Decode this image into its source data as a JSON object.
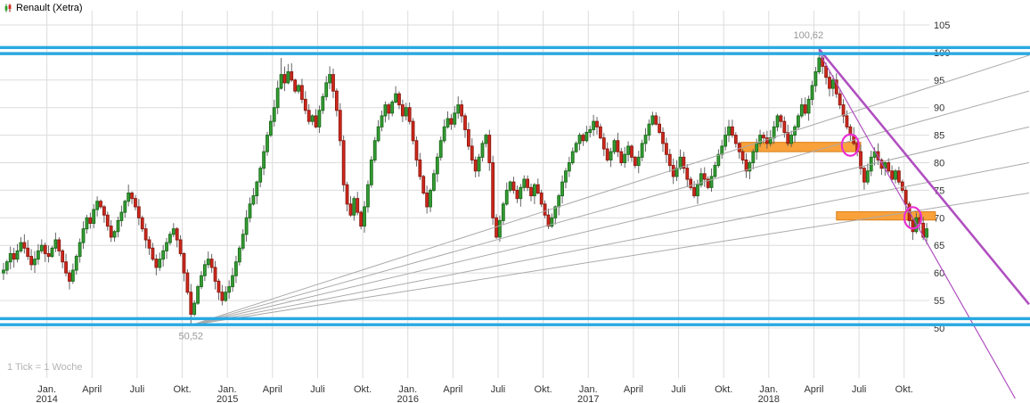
{
  "chart_data": {
    "type": "candlestick",
    "title": "Renault (Xetra)",
    "tick_note": "1 Tick = 1 Woche",
    "legend_position": "none",
    "grid": true,
    "y_axis": {
      "side": "right",
      "min": 41,
      "max": 107,
      "ticks": [
        105,
        100,
        95,
        90,
        85,
        80,
        75,
        70,
        65,
        60,
        55,
        50
      ]
    },
    "x_axis": {
      "unit": "weeks",
      "ticks": [
        {
          "label": "Jan.",
          "year": "2014",
          "week": 13
        },
        {
          "label": "April",
          "week": 26
        },
        {
          "label": "Juli",
          "week": 39
        },
        {
          "label": "Okt.",
          "week": 52
        },
        {
          "label": "Jan.",
          "year": "2015",
          "week": 65
        },
        {
          "label": "April",
          "week": 78
        },
        {
          "label": "Juli",
          "week": 91
        },
        {
          "label": "Okt.",
          "week": 104
        },
        {
          "label": "Jan.",
          "year": "2016",
          "week": 117
        },
        {
          "label": "April",
          "week": 130
        },
        {
          "label": "Juli",
          "week": 143
        },
        {
          "label": "Okt.",
          "week": 156
        },
        {
          "label": "Jan.",
          "year": "2017",
          "week": 169
        },
        {
          "label": "April",
          "week": 182
        },
        {
          "label": "Juli",
          "week": 195
        },
        {
          "label": "Okt.",
          "week": 208
        },
        {
          "label": "Jan.",
          "year": "2018",
          "week": 221
        },
        {
          "label": "April",
          "week": 234
        },
        {
          "label": "Juli",
          "week": 247
        },
        {
          "label": "Okt.",
          "week": 260
        }
      ]
    },
    "weekly_closes": [
      60.5,
      62.0,
      63.5,
      62.5,
      64.0,
      65.5,
      64.5,
      63.0,
      61.5,
      62.5,
      64.0,
      65.0,
      63.5,
      63.0,
      64.5,
      66.0,
      64.0,
      62.0,
      60.0,
      58.5,
      60.5,
      63.0,
      65.5,
      68.0,
      70.0,
      69.0,
      71.5,
      73.0,
      72.0,
      70.5,
      68.5,
      66.5,
      67.5,
      69.5,
      71.0,
      73.0,
      74.5,
      73.5,
      72.0,
      70.0,
      68.0,
      66.0,
      64.5,
      62.5,
      61.0,
      62.5,
      64.0,
      65.5,
      67.0,
      68.0,
      66.0,
      63.5,
      60.0,
      56.5,
      52.5,
      54.5,
      57.5,
      59.5,
      61.5,
      62.5,
      61.0,
      58.5,
      56.5,
      55.0,
      56.5,
      57.5,
      59.5,
      62.0,
      64.5,
      67.0,
      70.0,
      72.5,
      74.0,
      76.5,
      79.0,
      82.0,
      85.0,
      87.5,
      90.0,
      93.5,
      96.0,
      94.5,
      96.5,
      95.0,
      93.0,
      94.0,
      91.5,
      89.5,
      87.5,
      88.5,
      86.5,
      89.5,
      92.0,
      94.5,
      96.0,
      93.0,
      89.5,
      84.0,
      76.0,
      72.5,
      70.5,
      73.5,
      71.0,
      68.5,
      72.0,
      76.0,
      80.5,
      84.0,
      86.5,
      88.5,
      90.5,
      89.0,
      91.0,
      92.5,
      90.5,
      88.5,
      90.0,
      87.5,
      84.0,
      80.5,
      77.5,
      74.5,
      72.0,
      75.0,
      78.0,
      81.0,
      84.0,
      86.5,
      88.0,
      87.0,
      89.0,
      90.5,
      88.5,
      86.0,
      83.0,
      80.5,
      78.5,
      81.0,
      83.5,
      85.0,
      80.0,
      70.0,
      66.5,
      69.5,
      72.5,
      75.0,
      76.5,
      75.0,
      73.5,
      75.5,
      77.0,
      75.5,
      74.0,
      76.0,
      74.5,
      72.5,
      70.5,
      68.5,
      70.0,
      72.0,
      74.0,
      76.5,
      78.5,
      80.0,
      82.0,
      83.5,
      85.0,
      84.0,
      85.5,
      86.0,
      87.5,
      86.5,
      84.5,
      82.5,
      80.5,
      82.0,
      84.0,
      82.0,
      80.0,
      81.5,
      83.0,
      81.0,
      79.5,
      81.0,
      83.5,
      85.0,
      87.0,
      88.5,
      87.0,
      85.5,
      83.5,
      81.5,
      79.5,
      77.5,
      79.0,
      81.0,
      79.0,
      77.0,
      75.5,
      74.0,
      76.0,
      78.0,
      77.0,
      75.5,
      77.5,
      79.5,
      81.5,
      83.0,
      85.0,
      86.5,
      85.0,
      83.5,
      82.0,
      80.5,
      78.5,
      80.0,
      82.0,
      83.5,
      85.0,
      84.5,
      83.5,
      84.5,
      86.5,
      88.5,
      87.5,
      85.5,
      83.5,
      85.0,
      86.5,
      88.5,
      90.5,
      89.0,
      91.5,
      94.0,
      96.5,
      99.0,
      97.5,
      95.5,
      93.5,
      95.0,
      92.5,
      90.5,
      88.5,
      86.5,
      85.0,
      83.5,
      82.0,
      79.0,
      76.5,
      78.5,
      81.0,
      82.0,
      80.5,
      79.0,
      80.0,
      78.5,
      77.0,
      78.5,
      76.5,
      75.0,
      72.5,
      69.5,
      67.5,
      70.0,
      69.0,
      66.5,
      68.0
    ],
    "extremes": {
      "high": {
        "index": 235,
        "value": 100.62,
        "label": "100,62"
      },
      "low": {
        "index": 54,
        "value": 50.52,
        "label": "50,52"
      }
    },
    "wick_overrides": [
      {
        "index": 80,
        "high": 99.0
      }
    ],
    "bands": [
      {
        "name": "upper-resistance-band",
        "values": [
          100.9,
          99.8
        ]
      },
      {
        "name": "lower-support-band",
        "values": [
          51.7,
          50.6
        ]
      }
    ],
    "fan_lines": {
      "origin": {
        "week": 54.5,
        "value": 50.52
      },
      "targets": [
        {
          "week": 296,
          "value": 99.5
        },
        {
          "week": 296,
          "value": 93.0
        },
        {
          "week": 296,
          "value": 86.5
        },
        {
          "week": 296,
          "value": 80.0
        },
        {
          "week": 296,
          "value": 74.5
        }
      ]
    },
    "trend_lines": [
      {
        "from": {
          "week": 235.5,
          "value": 100.62
        },
        "to": {
          "week": 296,
          "value": 54.3
        },
        "width": 2.6
      },
      {
        "from": {
          "week": 235.5,
          "value": 100.0
        },
        "to": {
          "week": 292,
          "value": 37.2
        },
        "width": 1.2
      }
    ],
    "zones": [
      {
        "week_start": 213,
        "week_end": 247.5,
        "value_top": 83.7,
        "value_bottom": 82.0
      },
      {
        "week_start": 240.5,
        "week_end": 269,
        "value_top": 71.1,
        "value_bottom": 69.6
      }
    ],
    "circles": [
      {
        "week": 244.5,
        "value": 83.2
      },
      {
        "week": 262.5,
        "value": 70.0
      }
    ],
    "colors": {
      "up": "#35a035",
      "up_stroke": "#1d6e1d",
      "down": "#d4281c",
      "down_stroke": "#8f1b12",
      "wick": "#555555",
      "grid": "#dcdcdc",
      "axis_text": "#333333",
      "band": "#29a9e1",
      "fan": "#aaaaaa",
      "trend": "#b04fc0",
      "circle": "#ea2fd4",
      "zone_fill": "#f9a13b",
      "zone_stroke": "#db7f17",
      "label": "#999999"
    }
  }
}
